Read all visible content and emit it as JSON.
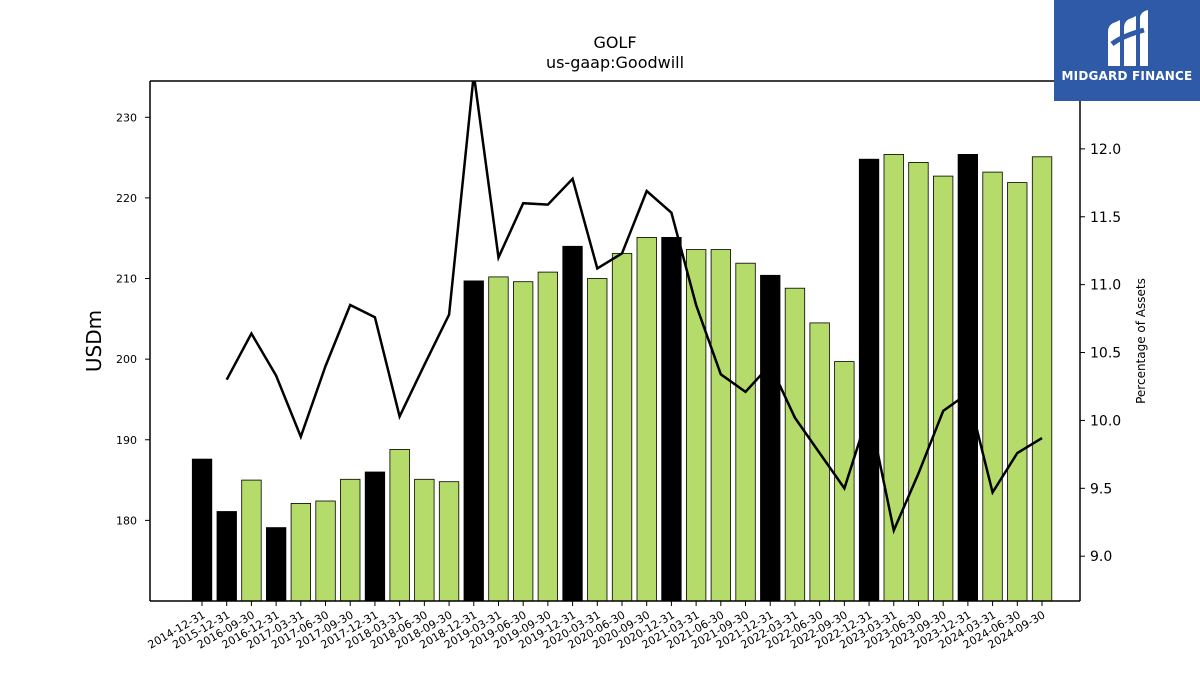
{
  "chart_data": {
    "type": "bar",
    "title": "GOLF",
    "subtitle": "us-gaap:Goodwill",
    "ylabel": "USDm",
    "y2label": "Percentage of Assets",
    "ylim": [
      170,
      234.5
    ],
    "y2lim": [
      8.67,
      12.5
    ],
    "yticks": [
      180,
      190,
      200,
      210,
      220,
      230
    ],
    "y2ticks": [
      "9.0",
      "9.5",
      "10.0",
      "10.5",
      "11.0",
      "11.5",
      "12.0"
    ],
    "categories": [
      "2014-12-31",
      "2015-12-31",
      "2016-09-30",
      "2016-12-31",
      "2017-03-31",
      "2017-06-30",
      "2017-09-30",
      "2017-12-31",
      "2018-03-31",
      "2018-06-30",
      "2018-09-30",
      "2018-12-31",
      "2019-03-31",
      "2019-06-30",
      "2019-09-30",
      "2019-12-31",
      "2020-03-31",
      "2020-06-30",
      "2020-09-30",
      "2020-12-31",
      "2021-03-31",
      "2021-06-30",
      "2021-09-30",
      "2021-12-31",
      "2022-03-31",
      "2022-06-30",
      "2022-09-30",
      "2022-12-31",
      "2023-03-31",
      "2023-06-30",
      "2023-09-30",
      "2023-12-31",
      "2024-03-31",
      "2024-06-30",
      "2024-09-30"
    ],
    "series": [
      {
        "kind": "bar",
        "axis": "left",
        "values": [
          187.6,
          181.1,
          185.0,
          179.1,
          182.1,
          182.4,
          185.1,
          186.0,
          188.8,
          185.1,
          184.8,
          209.7,
          210.2,
          209.6,
          210.8,
          214.0,
          210.0,
          213.1,
          215.1,
          215.1,
          213.6,
          213.6,
          211.9,
          210.4,
          208.8,
          204.5,
          199.7,
          224.8,
          225.4,
          224.4,
          222.7,
          225.4,
          223.2,
          221.9,
          225.1
        ],
        "bar_colors": [
          "#000000",
          "#000000",
          "#b5dc6a",
          "#000000",
          "#b5dc6a",
          "#b5dc6a",
          "#b5dc6a",
          "#000000",
          "#b5dc6a",
          "#b5dc6a",
          "#b5dc6a",
          "#000000",
          "#b5dc6a",
          "#b5dc6a",
          "#b5dc6a",
          "#000000",
          "#b5dc6a",
          "#b5dc6a",
          "#b5dc6a",
          "#000000",
          "#b5dc6a",
          "#b5dc6a",
          "#b5dc6a",
          "#000000",
          "#b5dc6a",
          "#b5dc6a",
          "#b5dc6a",
          "#000000",
          "#b5dc6a",
          "#b5dc6a",
          "#b5dc6a",
          "#000000",
          "#b5dc6a",
          "#b5dc6a",
          "#b5dc6a"
        ]
      },
      {
        "kind": "line",
        "axis": "right",
        "color": "#000000",
        "values": [
          null,
          10.3,
          10.64,
          10.33,
          9.88,
          10.4,
          10.85,
          10.76,
          10.03,
          10.41,
          10.78,
          12.55,
          11.2,
          11.6,
          11.59,
          11.78,
          11.12,
          11.23,
          11.69,
          11.53,
          10.85,
          10.34,
          10.21,
          10.41,
          10.02,
          9.76,
          9.5,
          10.07,
          9.19,
          9.61,
          10.07,
          10.2,
          9.47,
          9.76,
          9.87
        ]
      }
    ],
    "grid": false,
    "legend": "none"
  },
  "logo": {
    "text": "MIDGARD FINANCE",
    "background": "#2f5aa8"
  }
}
